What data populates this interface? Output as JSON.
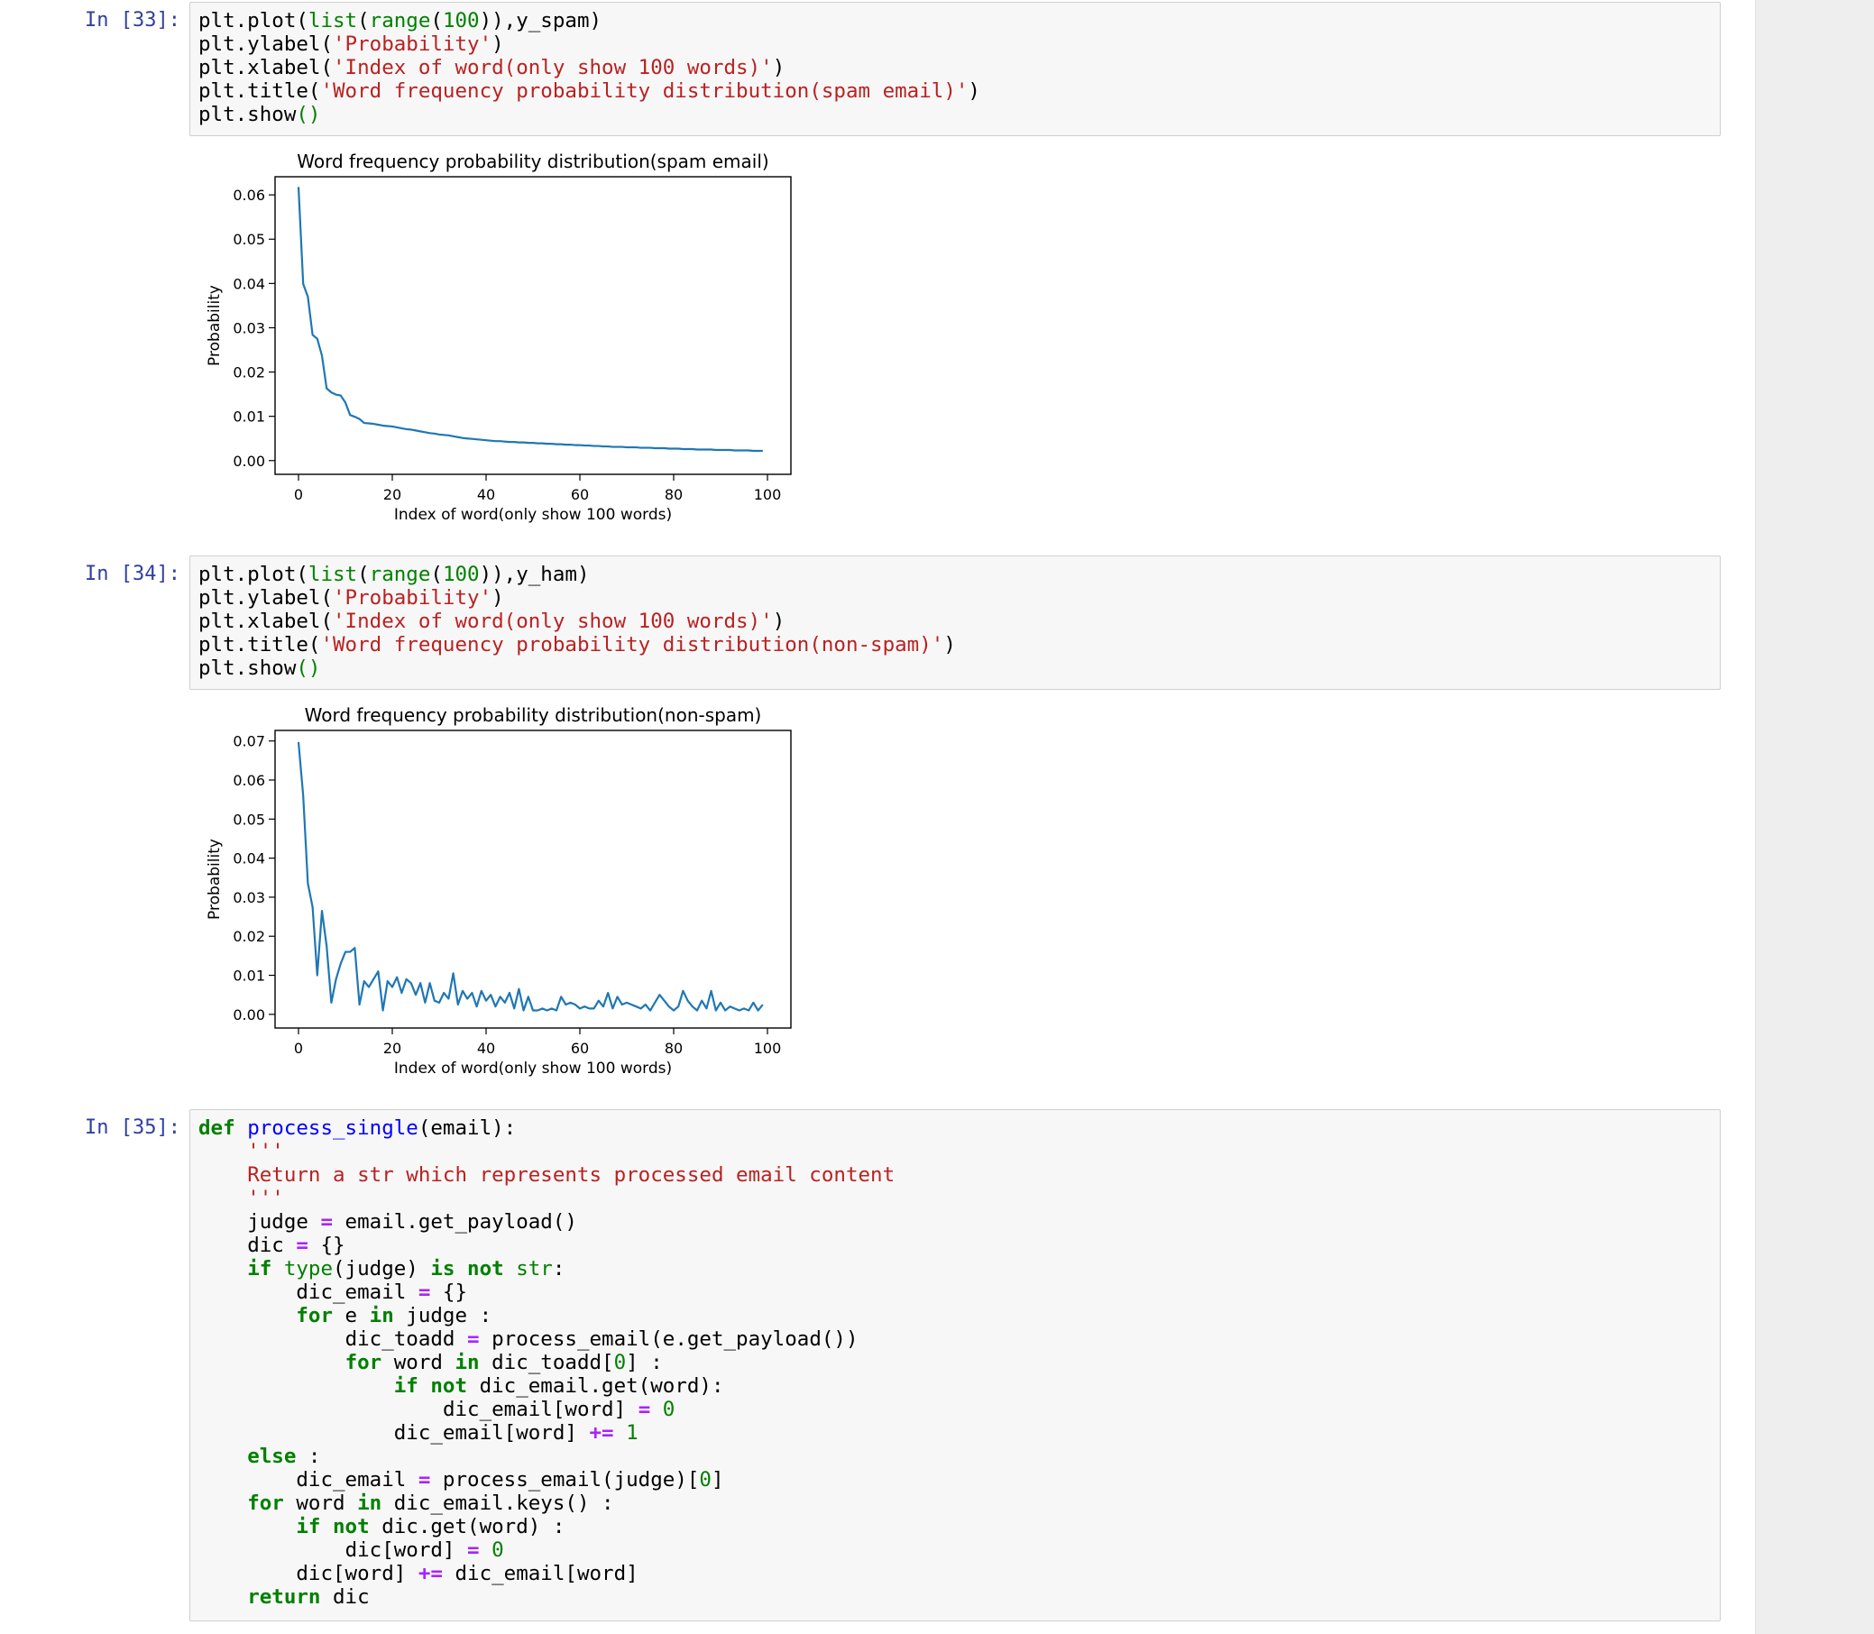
{
  "cells": [
    {
      "prompt": "In [33]:",
      "code": {
        "l1_a": "plt.plot(",
        "l1_b": "list",
        "l1_c": "(",
        "l1_d": "range",
        "l1_e": "(",
        "l1_f": "100",
        "l1_g": ")),y_spam)",
        "l2_a": "plt.ylabel(",
        "l2_b": "'Probability'",
        "l2_c": ")",
        "l3_a": "plt.xlabel(",
        "l3_b": "'Index of word(only show 100 words)'",
        "l3_c": ")",
        "l4_a": "plt.title(",
        "l4_b": "'Word frequency probability distribution(spam email)'",
        "l4_c": ")",
        "l5_a": "plt.show",
        "l5_b": "()"
      }
    },
    {
      "prompt": "In [34]:",
      "code": {
        "l1_a": "plt.plot(",
        "l1_b": "list",
        "l1_c": "(",
        "l1_d": "range",
        "l1_e": "(",
        "l1_f": "100",
        "l1_g": ")),y_ham)",
        "l2_a": "plt.ylabel(",
        "l2_b": "'Probability'",
        "l2_c": ")",
        "l3_a": "plt.xlabel(",
        "l3_b": "'Index of word(only show 100 words)'",
        "l3_c": ")",
        "l4_a": "plt.title(",
        "l4_b": "'Word frequency probability distribution(non-spam)'",
        "l4_c": ")",
        "l5_a": "plt.show",
        "l5_b": "()"
      }
    },
    {
      "prompt": "In [35]:",
      "code": {
        "def": "def",
        "fname": "process_single",
        "sig": "(email):",
        "q": "'''",
        "doc": "Return a str which represents processed email content",
        "judge_a": "judge ",
        "judge_b": "=",
        "judge_c": " email.get_payload()",
        "dic_a": "dic ",
        "dic_b": "=",
        "dic_c": " {}",
        "if1_a": "if",
        "if1_b": "type",
        "if1_c": "(judge) ",
        "if1_d": "is",
        "if1_e": "not",
        "if1_f": "str",
        "if1_g": ":",
        "de_a": "dic_email ",
        "de_b": "=",
        "de_c": " {}",
        "for1_a": "for",
        "for1_b": " e ",
        "for1_c": "in",
        "for1_d": " judge :",
        "dt_a": "dic_toadd ",
        "dt_b": "=",
        "dt_c": " process_email(e.get_payload())",
        "for2_a": "for",
        "for2_b": " word ",
        "for2_c": "in",
        "for2_d": " dic_toadd[",
        "for2_e": "0",
        "for2_f": "] :",
        "if2_a": "if",
        "if2_b": "not",
        "if2_c": " dic_email.get(word):",
        "as1_a": "dic_email[word] ",
        "as1_b": "=",
        "as1_c": "0",
        "inc1_a": "dic_email[word] ",
        "inc1_b": "+=",
        "inc1_c": "1",
        "else_a": "else",
        "else_b": " :",
        "de2_a": "dic_email ",
        "de2_b": "=",
        "de2_c": " process_email(judge)[",
        "de2_d": "0",
        "de2_e": "]",
        "for3_a": "for",
        "for3_b": " word ",
        "for3_c": "in",
        "for3_d": " dic_email.keys() :",
        "if3_a": "if",
        "if3_b": "not",
        "if3_c": " dic.get(word) :",
        "as2_a": "dic[word] ",
        "as2_b": "=",
        "as2_c": "0",
        "inc2_a": "dic[word] ",
        "inc2_b": "+=",
        "inc2_c": " dic_email[word]",
        "ret_a": "return",
        "ret_b": " dic"
      }
    }
  ],
  "colors": {
    "line": "#1f77b4",
    "prompt": "#303F9F"
  },
  "chart_data": [
    {
      "type": "line",
      "title": "Word frequency probability distribution(spam email)",
      "xlabel": "Index of word(only show 100 words)",
      "ylabel": "Probability",
      "xlim": [
        -5,
        105
      ],
      "ylim": [
        -0.0031,
        0.0641
      ],
      "xticks": [
        0,
        20,
        40,
        60,
        80,
        100
      ],
      "xtick_labels": [
        "0",
        "20",
        "40",
        "60",
        "80",
        "100"
      ],
      "yticks": [
        0.0,
        0.01,
        0.02,
        0.03,
        0.04,
        0.05,
        0.06
      ],
      "ytick_labels": [
        "0.00",
        "0.01",
        "0.02",
        "0.03",
        "0.04",
        "0.05",
        "0.06"
      ],
      "grid": false,
      "series": [
        {
          "x": [
            0,
            1,
            2,
            3,
            4,
            5,
            6,
            7,
            8,
            9,
            10,
            11,
            12,
            13,
            14,
            15,
            16,
            17,
            18,
            19,
            20,
            21,
            22,
            23,
            24,
            25,
            26,
            27,
            28,
            29,
            30,
            31,
            32,
            33,
            34,
            35,
            36,
            37,
            38,
            39,
            40,
            41,
            42,
            43,
            44,
            45,
            46,
            47,
            48,
            49,
            50,
            51,
            52,
            53,
            54,
            55,
            56,
            57,
            58,
            59,
            60,
            61,
            62,
            63,
            64,
            65,
            66,
            67,
            68,
            69,
            70,
            71,
            72,
            73,
            74,
            75,
            76,
            77,
            78,
            79,
            80,
            81,
            82,
            83,
            84,
            85,
            86,
            87,
            88,
            89,
            90,
            91,
            92,
            93,
            94,
            95,
            96,
            97,
            98,
            99
          ],
          "values": [
            0.0618,
            0.0399,
            0.037,
            0.0284,
            0.0275,
            0.0237,
            0.0163,
            0.0154,
            0.0149,
            0.0147,
            0.0131,
            0.0103,
            0.0099,
            0.0094,
            0.0085,
            0.0084,
            0.0083,
            0.0081,
            0.0079,
            0.0078,
            0.0077,
            0.0075,
            0.0073,
            0.0071,
            0.007,
            0.0068,
            0.0066,
            0.0064,
            0.0062,
            0.0061,
            0.0059,
            0.0058,
            0.0057,
            0.0055,
            0.0053,
            0.0051,
            0.005,
            0.0049,
            0.0048,
            0.0047,
            0.0046,
            0.0045,
            0.0044,
            0.0044,
            0.0043,
            0.0042,
            0.0042,
            0.0041,
            0.0041,
            0.004,
            0.004,
            0.0039,
            0.0039,
            0.0038,
            0.0038,
            0.0037,
            0.0037,
            0.0036,
            0.0036,
            0.0035,
            0.0035,
            0.0034,
            0.0034,
            0.0033,
            0.0033,
            0.0032,
            0.0032,
            0.0031,
            0.0031,
            0.0031,
            0.003,
            0.003,
            0.003,
            0.0029,
            0.0029,
            0.0029,
            0.0028,
            0.0028,
            0.0028,
            0.0027,
            0.0027,
            0.0027,
            0.0026,
            0.0026,
            0.0026,
            0.0025,
            0.0025,
            0.0025,
            0.0025,
            0.0024,
            0.0024,
            0.0024,
            0.0024,
            0.0023,
            0.0023,
            0.0023,
            0.0023,
            0.0022,
            0.0022,
            0.0022
          ]
        }
      ]
    },
    {
      "type": "line",
      "title": "Word frequency probability distribution(non-spam)",
      "xlabel": "Index of word(only show 100 words)",
      "ylabel": "Probability",
      "xlim": [
        -5,
        105
      ],
      "ylim": [
        -0.0035,
        0.0727
      ],
      "xticks": [
        0,
        20,
        40,
        60,
        80,
        100
      ],
      "xtick_labels": [
        "0",
        "20",
        "40",
        "60",
        "80",
        "100"
      ],
      "yticks": [
        0.0,
        0.01,
        0.02,
        0.03,
        0.04,
        0.05,
        0.06,
        0.07
      ],
      "ytick_labels": [
        "0.00",
        "0.01",
        "0.02",
        "0.03",
        "0.04",
        "0.05",
        "0.06",
        "0.07"
      ],
      "grid": false,
      "series": [
        {
          "x": [
            0,
            1,
            2,
            3,
            4,
            5,
            6,
            7,
            8,
            9,
            10,
            11,
            12,
            13,
            14,
            15,
            16,
            17,
            18,
            19,
            20,
            21,
            22,
            23,
            24,
            25,
            26,
            27,
            28,
            29,
            30,
            31,
            32,
            33,
            34,
            35,
            36,
            37,
            38,
            39,
            40,
            41,
            42,
            43,
            44,
            45,
            46,
            47,
            48,
            49,
            50,
            51,
            52,
            53,
            54,
            55,
            56,
            57,
            58,
            59,
            60,
            61,
            62,
            63,
            64,
            65,
            66,
            67,
            68,
            69,
            70,
            71,
            72,
            73,
            74,
            75,
            76,
            77,
            78,
            79,
            80,
            81,
            82,
            83,
            84,
            85,
            86,
            87,
            88,
            89,
            90,
            91,
            92,
            93,
            94,
            95,
            96,
            97,
            98,
            99
          ],
          "values": [
            0.0697,
            0.056,
            0.0335,
            0.0275,
            0.01,
            0.0265,
            0.0175,
            0.003,
            0.009,
            0.013,
            0.016,
            0.016,
            0.017,
            0.0025,
            0.0085,
            0.007,
            0.009,
            0.011,
            0.001,
            0.0085,
            0.007,
            0.0095,
            0.0055,
            0.009,
            0.008,
            0.005,
            0.008,
            0.003,
            0.008,
            0.0035,
            0.003,
            0.0055,
            0.004,
            0.0105,
            0.0025,
            0.006,
            0.004,
            0.0055,
            0.002,
            0.006,
            0.0035,
            0.005,
            0.002,
            0.0045,
            0.003,
            0.0055,
            0.0015,
            0.0065,
            0.001,
            0.0045,
            0.001,
            0.001,
            0.0015,
            0.001,
            0.0015,
            0.001,
            0.0045,
            0.0025,
            0.003,
            0.0025,
            0.0015,
            0.002,
            0.0015,
            0.0015,
            0.0035,
            0.002,
            0.0055,
            0.0015,
            0.0045,
            0.0025,
            0.003,
            0.0025,
            0.002,
            0.0015,
            0.0025,
            0.001,
            0.003,
            0.005,
            0.0035,
            0.002,
            0.001,
            0.002,
            0.006,
            0.0035,
            0.002,
            0.001,
            0.0035,
            0.0015,
            0.006,
            0.001,
            0.003,
            0.001,
            0.002,
            0.0015,
            0.001,
            0.0015,
            0.001,
            0.003,
            0.001,
            0.0025
          ]
        }
      ]
    }
  ]
}
